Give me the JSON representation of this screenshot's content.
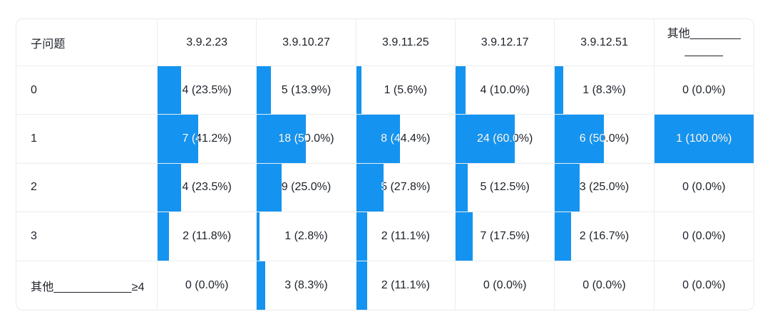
{
  "style": {
    "accent": "#1494f0",
    "grid_line": "#ebedf0",
    "text": "#1d2129",
    "bar_text": "#ffffff",
    "card_background": "#ffffff"
  },
  "chart_data": {
    "type": "table",
    "title": "",
    "row_header": "子问题",
    "columns": [
      "3.9.2.23",
      "3.9.10.27",
      "3.9.11.25",
      "3.9.12.17",
      "3.9.12.51",
      "其他______________"
    ],
    "other_column_header_lines": [
      "其他________",
      "______"
    ],
    "cell_format": "{count} ({pct}%)",
    "bar_meaning": "bar width = pct of column width",
    "rows": [
      {
        "label": "0",
        "cells": [
          {
            "count": 4,
            "pct": 23.5
          },
          {
            "count": 5,
            "pct": 13.9
          },
          {
            "count": 1,
            "pct": 5.6
          },
          {
            "count": 4,
            "pct": 10.0
          },
          {
            "count": 1,
            "pct": 8.3
          },
          {
            "count": 0,
            "pct": 0.0
          }
        ]
      },
      {
        "label": "1",
        "cells": [
          {
            "count": 7,
            "pct": 41.2
          },
          {
            "count": 18,
            "pct": 50.0
          },
          {
            "count": 8,
            "pct": 44.4
          },
          {
            "count": 24,
            "pct": 60.0
          },
          {
            "count": 6,
            "pct": 50.0
          },
          {
            "count": 1,
            "pct": 100.0
          }
        ]
      },
      {
        "label": "2",
        "cells": [
          {
            "count": 4,
            "pct": 23.5
          },
          {
            "count": 9,
            "pct": 25.0
          },
          {
            "count": 5,
            "pct": 27.8
          },
          {
            "count": 5,
            "pct": 12.5
          },
          {
            "count": 3,
            "pct": 25.0
          },
          {
            "count": 0,
            "pct": 0.0
          }
        ]
      },
      {
        "label": "3",
        "cells": [
          {
            "count": 2,
            "pct": 11.8
          },
          {
            "count": 1,
            "pct": 2.8
          },
          {
            "count": 2,
            "pct": 11.1
          },
          {
            "count": 7,
            "pct": 17.5
          },
          {
            "count": 2,
            "pct": 16.7
          },
          {
            "count": 0,
            "pct": 0.0
          }
        ]
      },
      {
        "label": "其他____________≥4",
        "cells": [
          {
            "count": 0,
            "pct": 0.0
          },
          {
            "count": 3,
            "pct": 8.3
          },
          {
            "count": 2,
            "pct": 11.1
          },
          {
            "count": 0,
            "pct": 0.0
          },
          {
            "count": 0,
            "pct": 0.0
          },
          {
            "count": 0,
            "pct": 0.0
          }
        ]
      }
    ]
  }
}
